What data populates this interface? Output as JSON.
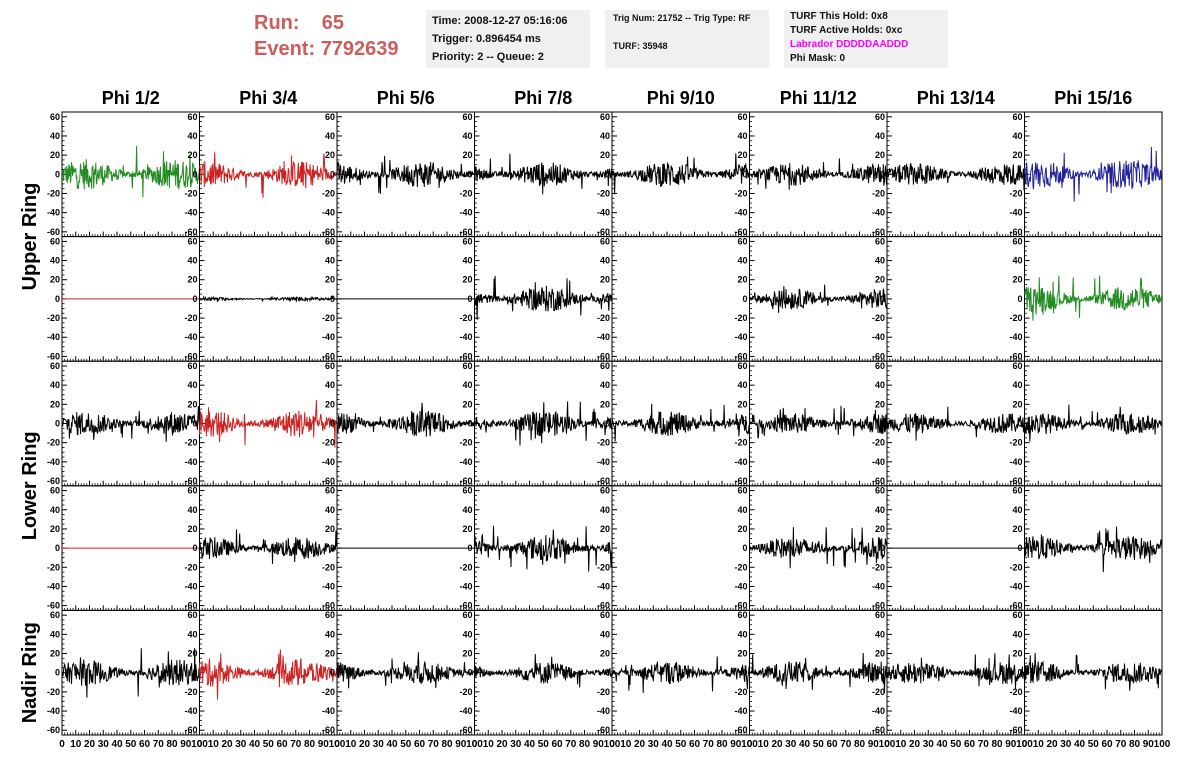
{
  "header": {
    "run_label": "Run:",
    "run_value": "65",
    "event_label": "Event:",
    "event_value": "7792639"
  },
  "info": {
    "time": "Time: 2008-12-27 05:16:06",
    "trigger": "Trigger: 0.896454 ms",
    "priority": "Priority: 2 -- Queue: 2",
    "trig_num": "Trig Num: 21752 -- Trig Type: RF",
    "turf": "TURF: 35948",
    "turf_this_hold": "TURF This Hold: 0x8",
    "turf_active_holds": "TURF Active Holds: 0xc",
    "labrador": "Labrador DDDDDAADDD",
    "phi_mask": "Phi Mask: 0"
  },
  "colors": {
    "run_text": "#cd5c5c",
    "box_bg": "#f0f0f0",
    "labrador_text": "#ff00ff",
    "trace_black": "#000000",
    "trace_red": "#cc2222",
    "trace_green": "#228b22",
    "trace_blue": "#22229a"
  },
  "chart_data": {
    "type": "line",
    "columns": [
      "Phi 1/2",
      "Phi 3/4",
      "Phi 5/6",
      "Phi 7/8",
      "Phi 9/10",
      "Phi 11/12",
      "Phi 13/14",
      "Phi 15/16"
    ],
    "ring_labels": [
      "Upper Ring",
      "Lower Ring",
      "Nadir Ring"
    ],
    "rows": 5,
    "xlim": [
      0,
      100
    ],
    "ylim": [
      -65,
      65
    ],
    "y_ticks": [
      -60,
      -40,
      -20,
      0,
      20,
      40,
      60
    ],
    "x_tick_labels": [
      "0",
      "10",
      "20",
      "30",
      "40",
      "50",
      "60",
      "70",
      "80",
      "90",
      "100"
    ],
    "y_tick_labels": [
      "-60",
      "-40",
      "-20",
      "0",
      "20",
      "40",
      "60"
    ],
    "grid": false,
    "panels": [
      [
        {
          "color": "green",
          "amplitude": 16,
          "peak": 30,
          "x_end": 100
        },
        {
          "color": "red",
          "amplitude": 14,
          "peak": 25,
          "x_end": 100
        },
        {
          "color": "black",
          "amplitude": 14,
          "peak": 22,
          "x_end": 100
        },
        {
          "color": "black",
          "amplitude": 13,
          "peak": 22,
          "x_end": 100
        },
        {
          "color": "black",
          "amplitude": 14,
          "peak": 24,
          "x_end": 100
        },
        {
          "color": "black",
          "amplitude": 12,
          "peak": 20,
          "x_end": 100
        },
        {
          "color": "black",
          "amplitude": 12,
          "peak": 20,
          "x_end": 100
        },
        {
          "color": "blue",
          "amplitude": 16,
          "peak": 30,
          "x_end": 100
        }
      ],
      [
        {
          "color": "red",
          "amplitude": 0,
          "peak": 0,
          "x_end": 100
        },
        {
          "color": "black",
          "amplitude": 2,
          "peak": 3,
          "x_end": 100
        },
        {
          "color": "black",
          "amplitude": 0,
          "peak": 0,
          "x_end": 100
        },
        {
          "color": "black",
          "amplitude": 14,
          "peak": 24,
          "x_end": 100
        },
        {
          "color": "none",
          "amplitude": 0,
          "peak": 0,
          "x_end": 0
        },
        {
          "color": "black",
          "amplitude": 11,
          "peak": 20,
          "x_end": 100
        },
        {
          "color": "none",
          "amplitude": 0,
          "peak": 0,
          "x_end": 0
        },
        {
          "color": "green",
          "amplitude": 14,
          "peak": 26,
          "x_end": 100
        }
      ],
      [
        {
          "color": "black",
          "amplitude": 13,
          "peak": 20,
          "x_end": 100
        },
        {
          "color": "red",
          "amplitude": 15,
          "peak": 28,
          "x_end": 100
        },
        {
          "color": "black",
          "amplitude": 14,
          "peak": 22,
          "x_end": 100
        },
        {
          "color": "black",
          "amplitude": 14,
          "peak": 24,
          "x_end": 100
        },
        {
          "color": "black",
          "amplitude": 13,
          "peak": 24,
          "x_end": 100
        },
        {
          "color": "black",
          "amplitude": 11,
          "peak": 20,
          "x_end": 100
        },
        {
          "color": "black",
          "amplitude": 11,
          "peak": 20,
          "x_end": 100
        },
        {
          "color": "black",
          "amplitude": 12,
          "peak": 20,
          "x_end": 100
        }
      ],
      [
        {
          "color": "red",
          "amplitude": 0,
          "peak": 0,
          "x_end": 100
        },
        {
          "color": "black",
          "amplitude": 12,
          "peak": 22,
          "x_end": 100
        },
        {
          "color": "black",
          "amplitude": 0,
          "peak": 0,
          "x_end": 100
        },
        {
          "color": "black",
          "amplitude": 14,
          "peak": 26,
          "x_end": 100
        },
        {
          "color": "none",
          "amplitude": 0,
          "peak": 0,
          "x_end": 0
        },
        {
          "color": "black",
          "amplitude": 12,
          "peak": 22,
          "x_end": 100
        },
        {
          "color": "black",
          "amplitude": 0,
          "peak": 0,
          "x_end": 100
        },
        {
          "color": "black",
          "amplitude": 13,
          "peak": 26,
          "x_end": 100
        }
      ],
      [
        {
          "color": "black",
          "amplitude": 14,
          "peak": 26,
          "x_end": 100
        },
        {
          "color": "red",
          "amplitude": 15,
          "peak": 30,
          "x_end": 100
        },
        {
          "color": "black",
          "amplitude": 12,
          "peak": 22,
          "x_end": 100
        },
        {
          "color": "black",
          "amplitude": 12,
          "peak": 22,
          "x_end": 100
        },
        {
          "color": "black",
          "amplitude": 12,
          "peak": 22,
          "x_end": 100
        },
        {
          "color": "black",
          "amplitude": 12,
          "peak": 22,
          "x_end": 100
        },
        {
          "color": "black",
          "amplitude": 12,
          "peak": 22,
          "x_end": 100
        },
        {
          "color": "black",
          "amplitude": 12,
          "peak": 22,
          "x_end": 100
        }
      ]
    ]
  }
}
